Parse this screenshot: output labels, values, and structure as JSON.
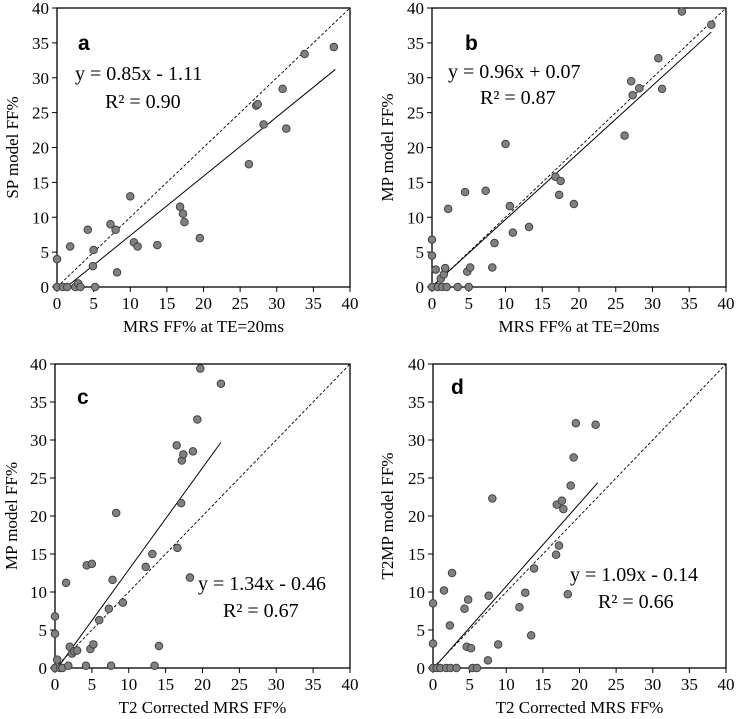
{
  "figure": {
    "charts": [
      {
        "letter": "a",
        "type": "scatter",
        "xlabel": "MRS FF% at TE=20ms",
        "ylabel": "SP model FF%",
        "equation": "y = 0.85x - 1.11",
        "r2": "R² = 0.90",
        "xlim": [
          0,
          40
        ],
        "ylim": [
          0,
          40
        ],
        "ticks": [
          0,
          5,
          10,
          15,
          20,
          25,
          30,
          35,
          40
        ],
        "fit": {
          "slope": 0.85,
          "intercept": -1.11,
          "x_range": [
            1.3,
            38
          ]
        },
        "identity_line": true,
        "points": [
          [
            0,
            0
          ],
          [
            0,
            4
          ],
          [
            0.8,
            0
          ],
          [
            1.4,
            0
          ],
          [
            1.8,
            5.8
          ],
          [
            2.5,
            0
          ],
          [
            2.9,
            0.5
          ],
          [
            3.2,
            0
          ],
          [
            4.2,
            8.2
          ],
          [
            4.9,
            3
          ],
          [
            5,
            5.3
          ],
          [
            5.2,
            0
          ],
          [
            7.3,
            9
          ],
          [
            8,
            8.2
          ],
          [
            8.2,
            2.1
          ],
          [
            10,
            13
          ],
          [
            10.5,
            6.4
          ],
          [
            11,
            5.8
          ],
          [
            13.7,
            6
          ],
          [
            16.8,
            11.5
          ],
          [
            17.2,
            10.5
          ],
          [
            17.4,
            9.3
          ],
          [
            19.5,
            7
          ],
          [
            26.2,
            17.6
          ],
          [
            27.2,
            26
          ],
          [
            27.4,
            26.2
          ],
          [
            28.2,
            23.3
          ],
          [
            30.8,
            28.4
          ],
          [
            31.3,
            22.7
          ],
          [
            33.8,
            33.4
          ],
          [
            37.8,
            34.4
          ]
        ]
      },
      {
        "letter": "b",
        "type": "scatter",
        "xlabel": "MRS FF% at TE=20ms",
        "ylabel": "MP model FF%",
        "equation": "y = 0.96x + 0.07",
        "r2": "R² = 0.87",
        "xlim": [
          0,
          40
        ],
        "ylim": [
          0,
          40
        ],
        "ticks": [
          0,
          5,
          10,
          15,
          20,
          25,
          30,
          35,
          40
        ],
        "fit": {
          "slope": 0.96,
          "intercept": 0.07,
          "x_range": [
            0,
            38
          ]
        },
        "identity_line": true,
        "points": [
          [
            0,
            0
          ],
          [
            0,
            6.8
          ],
          [
            0,
            4.5
          ],
          [
            0.5,
            2.5
          ],
          [
            0.8,
            0
          ],
          [
            1.2,
            1.2
          ],
          [
            1.4,
            0
          ],
          [
            1.6,
            1.8
          ],
          [
            1.8,
            2.7
          ],
          [
            2,
            0
          ],
          [
            2.2,
            11.2
          ],
          [
            3.5,
            0
          ],
          [
            4.5,
            13.6
          ],
          [
            4.8,
            2.2
          ],
          [
            5,
            0
          ],
          [
            5.2,
            2.8
          ],
          [
            7.3,
            13.8
          ],
          [
            8.2,
            2.8
          ],
          [
            8.5,
            6.3
          ],
          [
            10,
            20.5
          ],
          [
            10.6,
            11.6
          ],
          [
            11,
            7.8
          ],
          [
            13.2,
            8.6
          ],
          [
            16.8,
            15.8
          ],
          [
            17.3,
            13.2
          ],
          [
            17.5,
            15.2
          ],
          [
            19.3,
            11.9
          ],
          [
            26.2,
            21.7
          ],
          [
            27.1,
            29.5
          ],
          [
            27.3,
            27.5
          ],
          [
            28.2,
            28.5
          ],
          [
            30.8,
            32.8
          ],
          [
            31.3,
            28.4
          ],
          [
            34,
            39.5
          ],
          [
            38,
            37.6
          ]
        ]
      },
      {
        "letter": "c",
        "type": "scatter",
        "xlabel": "T2 Corrected MRS FF%",
        "ylabel": "MP model FF%",
        "equation": "y = 1.34x - 0.46",
        "r2": "R² = 0.67",
        "xlim": [
          0,
          40
        ],
        "ylim": [
          0,
          40
        ],
        "ticks": [
          0,
          5,
          10,
          15,
          20,
          25,
          30,
          35,
          40
        ],
        "fit": {
          "slope": 1.34,
          "intercept": -0.46,
          "x_range": [
            0.35,
            22.5
          ]
        },
        "identity_line": true,
        "points": [
          [
            0,
            0
          ],
          [
            0,
            6.8
          ],
          [
            0,
            4.5
          ],
          [
            0.3,
            1.1
          ],
          [
            0.7,
            0
          ],
          [
            1,
            0
          ],
          [
            1.5,
            11.2
          ],
          [
            1.8,
            0.3
          ],
          [
            2,
            2.8
          ],
          [
            2.3,
            1.9
          ],
          [
            2.6,
            2.2
          ],
          [
            3,
            2.3
          ],
          [
            4.2,
            0.3
          ],
          [
            4.3,
            13.5
          ],
          [
            4.8,
            2.5
          ],
          [
            5,
            13.7
          ],
          [
            5.2,
            3.1
          ],
          [
            6,
            6.3
          ],
          [
            7.3,
            7.8
          ],
          [
            7.6,
            0.3
          ],
          [
            7.8,
            11.6
          ],
          [
            8.3,
            20.4
          ],
          [
            9.2,
            8.6
          ],
          [
            12.3,
            13.3
          ],
          [
            13.2,
            15
          ],
          [
            13.5,
            0.3
          ],
          [
            14.1,
            2.9
          ],
          [
            16.5,
            29.3
          ],
          [
            16.6,
            15.8
          ],
          [
            17.1,
            21.7
          ],
          [
            17.2,
            27.3
          ],
          [
            17.4,
            28.1
          ],
          [
            18.3,
            11.9
          ],
          [
            18.7,
            28.5
          ],
          [
            19.3,
            32.7
          ],
          [
            19.7,
            39.4
          ],
          [
            22.5,
            37.4
          ]
        ]
      },
      {
        "letter": "d",
        "type": "scatter",
        "xlabel": "T2 Corrected MRS FF%",
        "ylabel": "T2MP model FF%",
        "equation": "y = 1.09x - 0.14",
        "r2": "R² = 0.66",
        "xlim": [
          0,
          40
        ],
        "ylim": [
          0,
          40
        ],
        "ticks": [
          0,
          5,
          10,
          15,
          20,
          25,
          30,
          35,
          40
        ],
        "fit": {
          "slope": 1.09,
          "intercept": -0.14,
          "x_range": [
            0.15,
            22.5
          ]
        },
        "identity_line": true,
        "points": [
          [
            0,
            0
          ],
          [
            0,
            8.5
          ],
          [
            0,
            3.2
          ],
          [
            0.5,
            0
          ],
          [
            1,
            0
          ],
          [
            1.5,
            10.2
          ],
          [
            1.8,
            0
          ],
          [
            2.3,
            5.6
          ],
          [
            2.4,
            0
          ],
          [
            2.6,
            12.5
          ],
          [
            3.2,
            0
          ],
          [
            4.3,
            7.8
          ],
          [
            4.6,
            2.8
          ],
          [
            4.8,
            9
          ],
          [
            5.2,
            2.6
          ],
          [
            5.4,
            0
          ],
          [
            6,
            0
          ],
          [
            7.5,
            1
          ],
          [
            7.6,
            9.5
          ],
          [
            8.1,
            22.3
          ],
          [
            8.9,
            3.1
          ],
          [
            11.8,
            8
          ],
          [
            12.6,
            9.9
          ],
          [
            13.4,
            4.3
          ],
          [
            13.8,
            13.1
          ],
          [
            16.8,
            14.9
          ],
          [
            16.9,
            21.5
          ],
          [
            17.2,
            16.1
          ],
          [
            17.6,
            22
          ],
          [
            17.8,
            20.9
          ],
          [
            18.4,
            9.7
          ],
          [
            18.8,
            24
          ],
          [
            19.2,
            27.7
          ],
          [
            19.5,
            32.2
          ],
          [
            22.2,
            32
          ]
        ]
      }
    ]
  }
}
